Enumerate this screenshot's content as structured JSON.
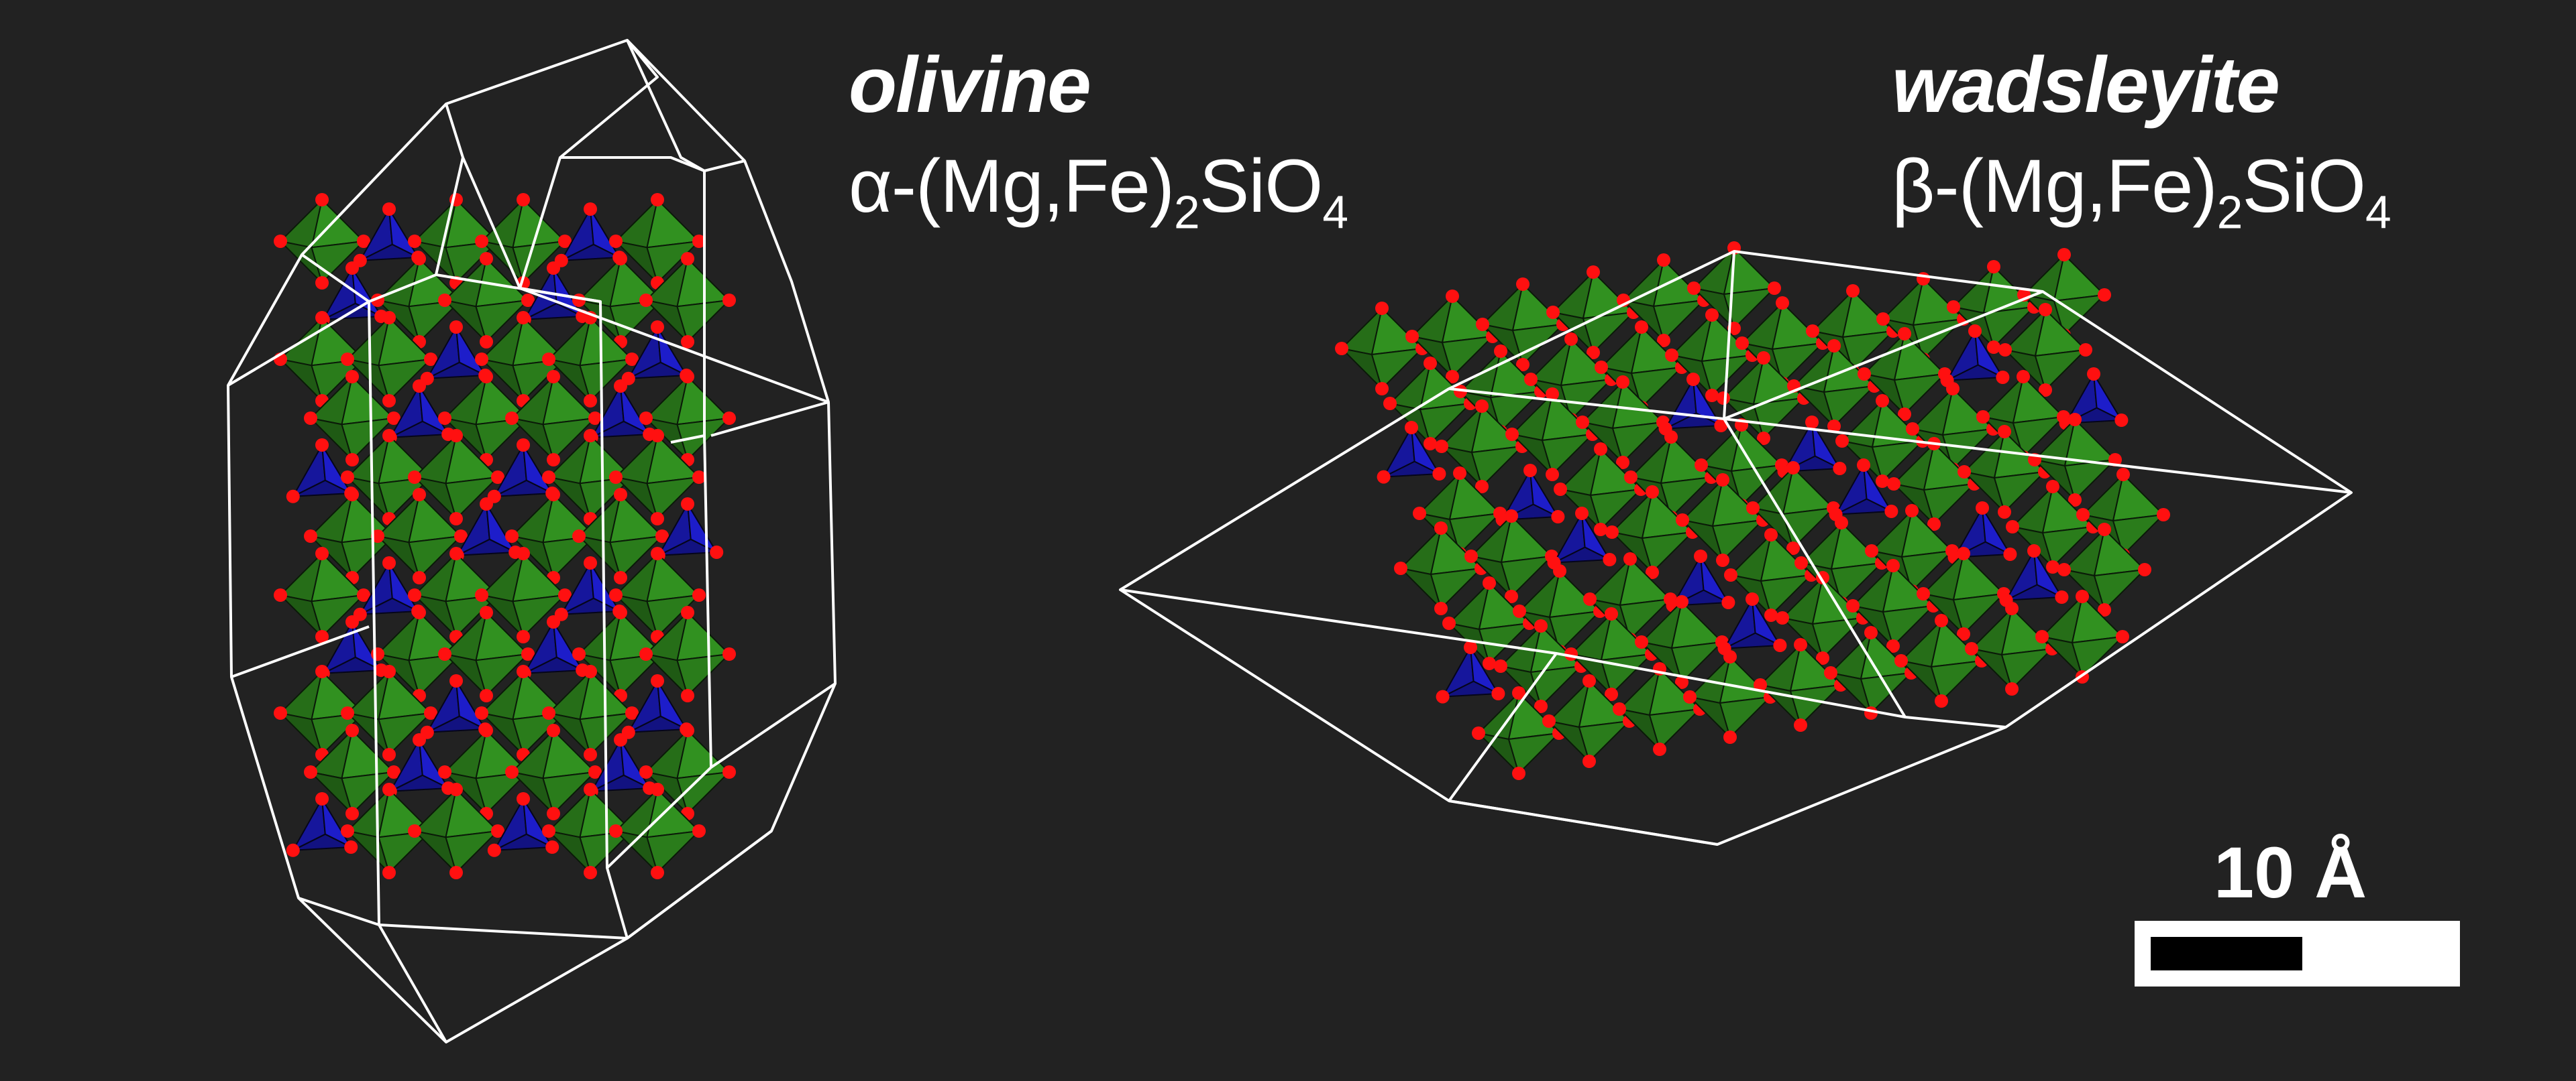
{
  "panels": {
    "olivine": {
      "name": "olivine",
      "prefix": "α-(Mg,Fe)",
      "sub1": "2",
      "mid": "SiO",
      "sub2": "4"
    },
    "wadsleyite": {
      "name": "wadsleyite",
      "prefix": "β-(Mg,Fe)",
      "sub1": "2",
      "mid": "SiO",
      "sub2": "4"
    }
  },
  "scale_bar": {
    "label": "10 Å",
    "filled_fraction": 0.5
  },
  "colors": {
    "background": "#222222",
    "octahedra": "#2f8a1e",
    "tetrahedra": "#1a1ab8",
    "oxygen": "#ff1010",
    "cell_edges": "#ffffff"
  }
}
